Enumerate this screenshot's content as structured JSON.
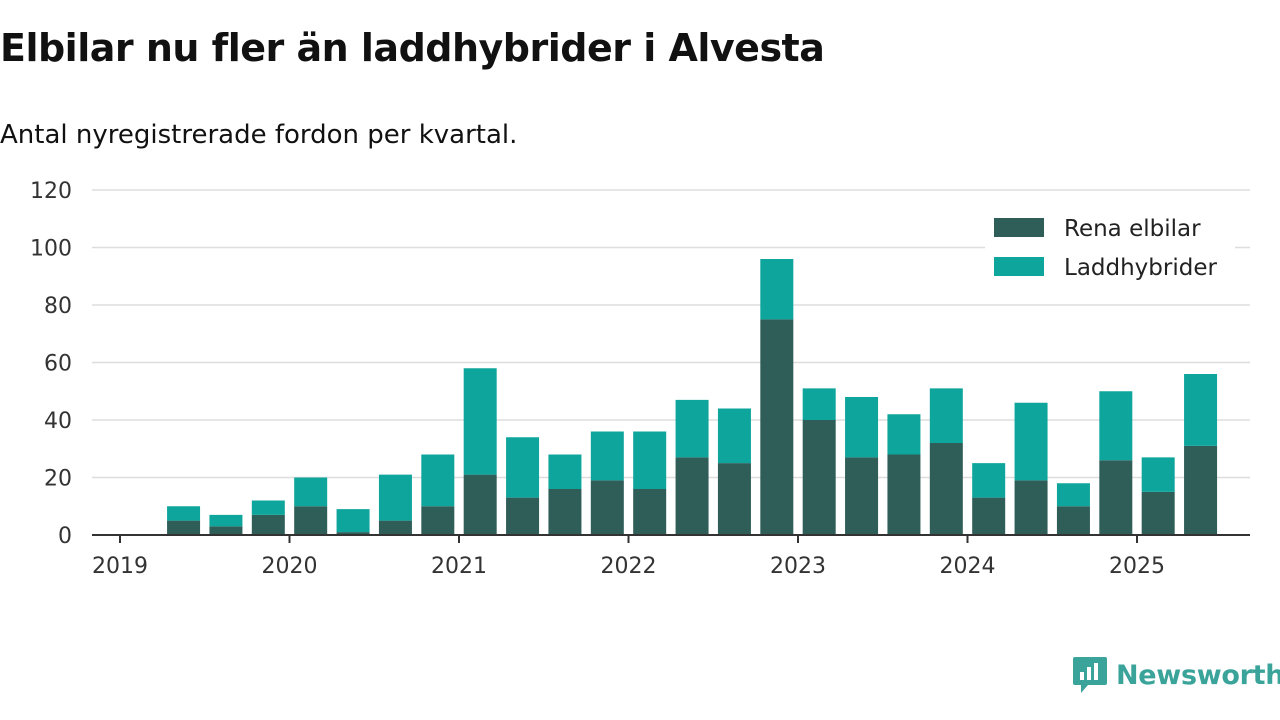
{
  "title": "Elbilar nu fler än laddhybrider i Alvesta",
  "subtitle": "Antal nyregistrerade fordon per kvartal.",
  "brand": "Newsworthy",
  "colors": {
    "elbilar": "#2f5d58",
    "laddhybrider": "#0ea59c",
    "grid": "#dddddd",
    "axis": "#333333",
    "brand": "#3aa39a"
  },
  "chart_data": {
    "type": "bar",
    "stacked": true,
    "ylim": [
      0,
      120
    ],
    "yticks": [
      0,
      20,
      40,
      60,
      80,
      100,
      120
    ],
    "xticks": [
      "2019",
      "2020",
      "2021",
      "2022",
      "2023",
      "2024",
      "2025"
    ],
    "categories": [
      "2019 Q2",
      "2019 Q3",
      "2019 Q4",
      "2020 Q1",
      "2020 Q2",
      "2020 Q3",
      "2020 Q4",
      "2021 Q1",
      "2021 Q2",
      "2021 Q3",
      "2021 Q4",
      "2022 Q1",
      "2022 Q2",
      "2022 Q3",
      "2022 Q4",
      "2023 Q1",
      "2023 Q2",
      "2023 Q3",
      "2023 Q4",
      "2024 Q1",
      "2024 Q2",
      "2024 Q3",
      "2024 Q4",
      "2025 Q1",
      "2025 Q2"
    ],
    "series": [
      {
        "name": "Rena elbilar",
        "values": [
          5,
          3,
          7,
          10,
          1,
          5,
          10,
          21,
          13,
          16,
          19,
          16,
          27,
          25,
          75,
          40,
          27,
          28,
          32,
          13,
          19,
          10,
          26,
          15,
          31
        ]
      },
      {
        "name": "Laddhybrider",
        "values": [
          5,
          4,
          5,
          10,
          8,
          16,
          18,
          37,
          21,
          12,
          17,
          20,
          20,
          19,
          21,
          11,
          21,
          14,
          19,
          12,
          27,
          8,
          24,
          12,
          25
        ]
      }
    ],
    "legend": "top-right",
    "grid": true
  }
}
